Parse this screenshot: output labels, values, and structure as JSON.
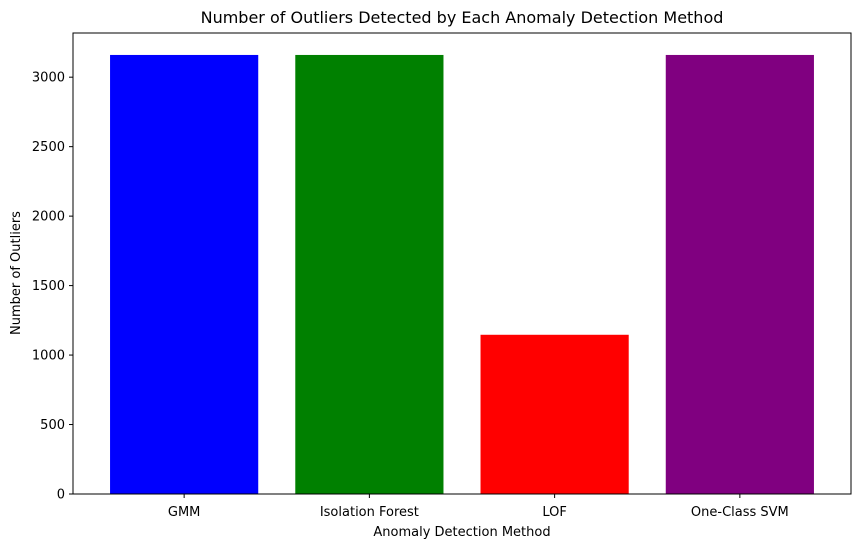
{
  "chart_data": {
    "type": "bar",
    "title": "Number of Outliers Detected by Each Anomaly Detection Method",
    "xlabel": "Anomaly Detection Method",
    "ylabel": "Number of Outliers",
    "categories": [
      "GMM",
      "Isolation Forest",
      "LOF",
      "One-Class SVM"
    ],
    "values": [
      3160,
      3160,
      1146,
      3160
    ],
    "colors": [
      "#0000ff",
      "#008000",
      "#ff0000",
      "#800080"
    ],
    "ylim": [
      0,
      3318
    ],
    "yticks": [
      0,
      500,
      1000,
      1500,
      2000,
      2500,
      3000
    ],
    "grid": false,
    "legend": "none"
  }
}
